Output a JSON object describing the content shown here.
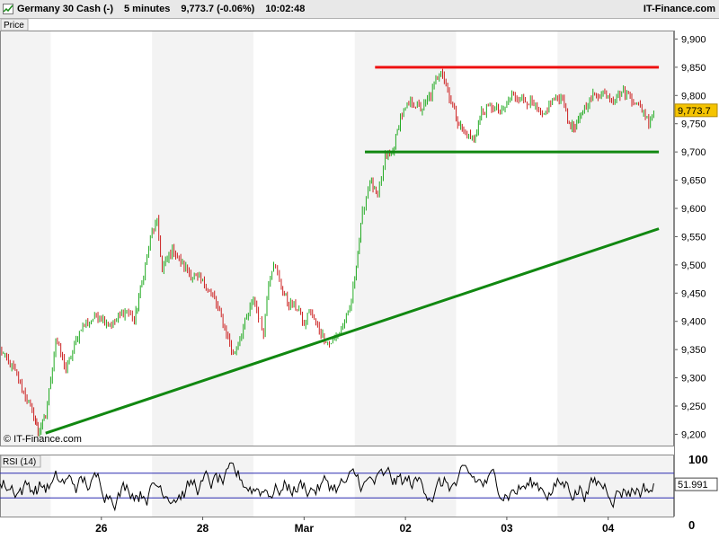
{
  "header": {
    "instrument": "Germany 30 Cash (-)",
    "timeframe": "5 minutes",
    "last": "9,773.7 (-0.06%)",
    "time": "10:02:48",
    "brand": "IT-Finance.com"
  },
  "colors": {
    "up": "#22aa22",
    "down": "#cc2222",
    "resistance": "#ee1111",
    "support": "#118811",
    "trend": "#118811",
    "rsi_line": "#000000",
    "rsi_band": "#2b2bb0",
    "price_label_bg": "#f5c400",
    "shade": "#f3f3f3"
  },
  "chart_data": [
    {
      "type": "line",
      "panel_label": "Price",
      "watermark": "© IT-Finance.com",
      "y_ticks": [
        "9,200",
        "9,250",
        "9,300",
        "9,350",
        "9,400",
        "9,450",
        "9,500",
        "9,550",
        "9,600",
        "9,650",
        "9,700",
        "9,750",
        "9,800",
        "9,850",
        "9,900"
      ],
      "y_tick_values": [
        9200,
        9250,
        9300,
        9350,
        9400,
        9450,
        9500,
        9550,
        9600,
        9650,
        9700,
        9750,
        9800,
        9850,
        9900
      ],
      "ylim": [
        9180,
        9915
      ],
      "x_labels": [
        "26",
        "28",
        "Mar",
        "02",
        "03",
        "04"
      ],
      "x_label_positions": [
        1.0,
        3.0,
        5.0,
        7.0,
        9.0,
        11.0
      ],
      "xlim": [
        -1.0,
        12.3
      ],
      "last_price": "9,773.7",
      "anchors": [
        [
          -1.0,
          9350
        ],
        [
          -0.7,
          9310
        ],
        [
          -0.3,
          9225
        ],
        [
          -0.25,
          9205
        ],
        [
          -0.1,
          9230
        ],
        [
          0.1,
          9370
        ],
        [
          0.3,
          9315
        ],
        [
          0.6,
          9390
        ],
        [
          0.9,
          9410
        ],
        [
          1.2,
          9395
        ],
        [
          1.5,
          9420
        ],
        [
          1.65,
          9400
        ],
        [
          1.8,
          9470
        ],
        [
          2.0,
          9560
        ],
        [
          2.1,
          9575
        ],
        [
          2.2,
          9490
        ],
        [
          2.4,
          9530
        ],
        [
          2.6,
          9500
        ],
        [
          2.8,
          9480
        ],
        [
          3.0,
          9470
        ],
        [
          3.2,
          9445
        ],
        [
          3.4,
          9400
        ],
        [
          3.6,
          9340
        ],
        [
          3.8,
          9390
        ],
        [
          4.0,
          9440
        ],
        [
          4.2,
          9380
        ],
        [
          4.3,
          9470
        ],
        [
          4.4,
          9505
        ],
        [
          4.55,
          9460
        ],
        [
          4.7,
          9430
        ],
        [
          4.9,
          9420
        ],
        [
          5.0,
          9390
        ],
        [
          5.1,
          9420
        ],
        [
          5.3,
          9385
        ],
        [
          5.4,
          9370
        ],
        [
          5.5,
          9360
        ],
        [
          5.7,
          9380
        ],
        [
          5.9,
          9420
        ],
        [
          6.0,
          9480
        ],
        [
          6.15,
          9590
        ],
        [
          6.3,
          9650
        ],
        [
          6.45,
          9620
        ],
        [
          6.6,
          9690
        ],
        [
          6.75,
          9700
        ],
        [
          6.9,
          9760
        ],
        [
          7.1,
          9790
        ],
        [
          7.3,
          9775
        ],
        [
          7.5,
          9800
        ],
        [
          7.6,
          9830
        ],
        [
          7.7,
          9848
        ],
        [
          7.8,
          9820
        ],
        [
          7.9,
          9790
        ],
        [
          8.0,
          9760
        ],
        [
          8.15,
          9735
        ],
        [
          8.35,
          9720
        ],
        [
          8.5,
          9770
        ],
        [
          8.7,
          9780
        ],
        [
          8.9,
          9770
        ],
        [
          9.1,
          9800
        ],
        [
          9.3,
          9795
        ],
        [
          9.5,
          9785
        ],
        [
          9.7,
          9760
        ],
        [
          9.9,
          9790
        ],
        [
          10.1,
          9800
        ],
        [
          10.2,
          9755
        ],
        [
          10.35,
          9740
        ],
        [
          10.5,
          9775
        ],
        [
          10.7,
          9800
        ],
        [
          10.9,
          9805
        ],
        [
          11.1,
          9795
        ],
        [
          11.3,
          9808
        ],
        [
          11.5,
          9792
        ],
        [
          11.7,
          9770
        ],
        [
          11.8,
          9755
        ],
        [
          11.9,
          9773
        ]
      ],
      "lines": [
        {
          "name": "resistance",
          "kind": "horizontal",
          "value": 9850,
          "x_from": 6.4,
          "x_to": 12.0
        },
        {
          "name": "support",
          "kind": "horizontal",
          "value": 9700,
          "x_from": 6.2,
          "x_to": 12.0
        },
        {
          "name": "trend",
          "kind": "trendline",
          "points": [
            [
              -0.1,
              9202
            ],
            [
              12.0,
              9564
            ]
          ]
        }
      ]
    },
    {
      "type": "line",
      "panel_label": "RSI (14)",
      "y_ticks": [
        "100",
        "0"
      ],
      "y_tick_values": [
        100,
        0
      ],
      "ylim": [
        0,
        100
      ],
      "bands": [
        70,
        30
      ],
      "last_value": "51.991",
      "xlim": [
        -1.0,
        12.3
      ]
    }
  ]
}
